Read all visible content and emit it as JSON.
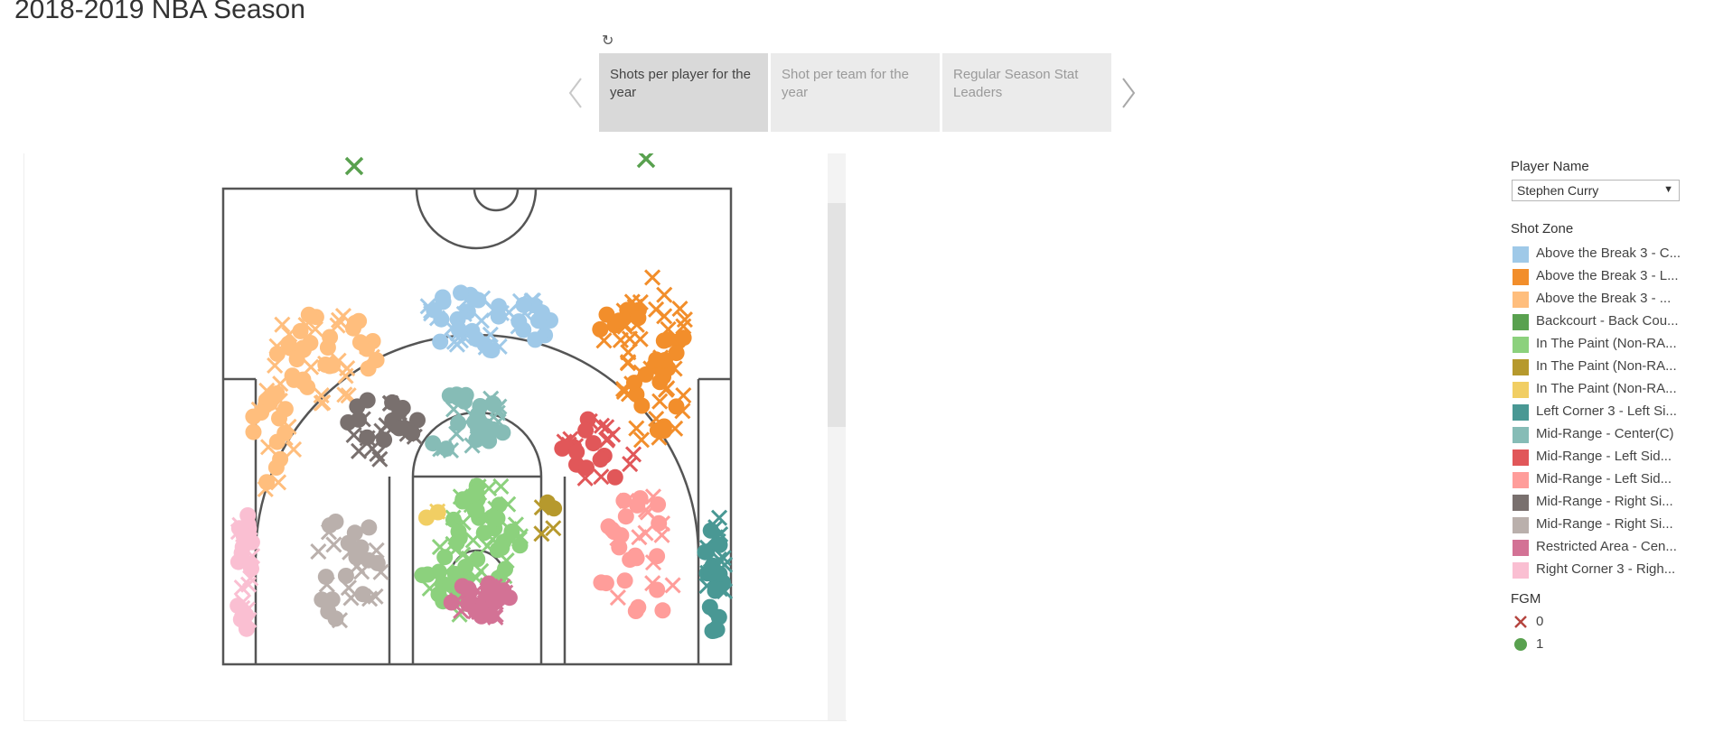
{
  "page": {
    "title": "2018-2019 NBA Season"
  },
  "story": {
    "revert_icon": "revert-icon",
    "prev_icon": "chevron-left-icon",
    "next_icon": "chevron-right-icon",
    "points": [
      {
        "label": "Shots per player for the year",
        "active": true
      },
      {
        "label": "Shot per team for the year",
        "active": false
      },
      {
        "label": "Regular Season Stat Leaders",
        "active": false
      }
    ]
  },
  "filter": {
    "title": "Player Name",
    "value": "Stephen Curry"
  },
  "legend": {
    "title": "Shot Zone",
    "items": [
      {
        "label": "Above the Break 3 - C...",
        "color": "#9fc9e8"
      },
      {
        "label": "Above the Break 3 - L...",
        "color": "#f28e2b"
      },
      {
        "label": "Above the Break 3 - ...",
        "color": "#ffbe7d"
      },
      {
        "label": "Backcourt - Back Cou...",
        "color": "#59a14f"
      },
      {
        "label": "In The Paint (Non-RA...",
        "color": "#8cd17d"
      },
      {
        "label": "In The Paint (Non-RA...",
        "color": "#b6992d"
      },
      {
        "label": "In The Paint (Non-RA...",
        "color": "#f1ce63"
      },
      {
        "label": "Left Corner 3 - Left Si...",
        "color": "#499894"
      },
      {
        "label": "Mid-Range - Center(C)",
        "color": "#86bcb6"
      },
      {
        "label": "Mid-Range - Left Sid...",
        "color": "#e15759"
      },
      {
        "label": "Mid-Range - Left Sid...",
        "color": "#ff9d9a"
      },
      {
        "label": "Mid-Range - Right Si...",
        "color": "#79706e"
      },
      {
        "label": "Mid-Range - Right Si...",
        "color": "#bab0ac"
      },
      {
        "label": "Restricted Area - Cen...",
        "color": "#d37295"
      },
      {
        "label": "Right Corner 3 - Righ...",
        "color": "#fabfd2"
      }
    ]
  },
  "fgm_legend": {
    "title": "FGM",
    "items": [
      {
        "label": "0",
        "mark": "x",
        "color": "#c0504d"
      },
      {
        "label": "1",
        "mark": "dot",
        "color": "#59a14f"
      }
    ]
  },
  "chart_data": {
    "type": "scatter",
    "title": "",
    "marks": {
      "0": "x",
      "1": "circle"
    },
    "zones": [
      {
        "zone": "Above the Break 3 - C...",
        "color": "#9fc9e8"
      },
      {
        "zone": "Above the Break 3 - L...",
        "color": "#f28e2b"
      },
      {
        "zone": "Above the Break 3 - ...",
        "color": "#ffbe7d"
      },
      {
        "zone": "Backcourt - Back Cou...",
        "color": "#59a14f"
      },
      {
        "zone": "In The Paint (Non-RA...",
        "color": "#8cd17d"
      },
      {
        "zone": "In The Paint (Non-RA...",
        "color": "#b6992d"
      },
      {
        "zone": "In The Paint (Non-RA...",
        "color": "#f1ce63"
      },
      {
        "zone": "Left Corner 3 - Left Si...",
        "color": "#499894"
      },
      {
        "zone": "Mid-Range - Center(C)",
        "color": "#86bcb6"
      },
      {
        "zone": "Mid-Range - Left Sid...",
        "color": "#e15759"
      },
      {
        "zone": "Mid-Range - Left Sid...",
        "color": "#ff9d9a"
      },
      {
        "zone": "Mid-Range - Right Si...",
        "color": "#79706e"
      },
      {
        "zone": "Mid-Range - Right Si...",
        "color": "#bab0ac"
      },
      {
        "zone": "Restricted Area - Cen...",
        "color": "#d37295"
      },
      {
        "zone": "Right Corner 3 - Righ...",
        "color": "#fabfd2"
      }
    ]
  }
}
